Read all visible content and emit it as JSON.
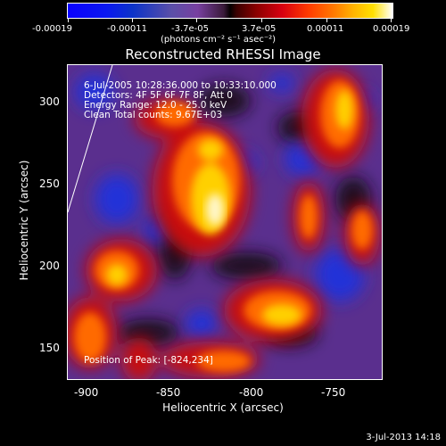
{
  "colorbar": {
    "ticks": [
      "-0.00019",
      "-0.00011",
      "-3.7e-05",
      "3.7e-05",
      "0.00011",
      "0.00019"
    ],
    "units": "(photons cm⁻² s⁻¹ asec⁻²)"
  },
  "title": "Reconstructed RHESSI Image",
  "info": {
    "line1": "6-Jul-2005 10:28:36.000 to 10:33:10.000",
    "line2": "Detectors: 4F 5F 6F 7F 8F, Att 0",
    "line3": "Energy Range: 12.0 - 25.0 keV",
    "line4": "Clean     Total counts: 9.67E+03",
    "peak": "Position of Peak: [-824,234]"
  },
  "axes": {
    "xlabel": "Heliocentric X (arcsec)",
    "ylabel": "Heliocentric Y (arcsec)",
    "xticks": [
      "-900",
      "-850",
      "-800",
      "-750"
    ],
    "yticks": [
      "300",
      "250",
      "200",
      "150"
    ]
  },
  "timestamp": "3-Jul-2013 14:18"
}
